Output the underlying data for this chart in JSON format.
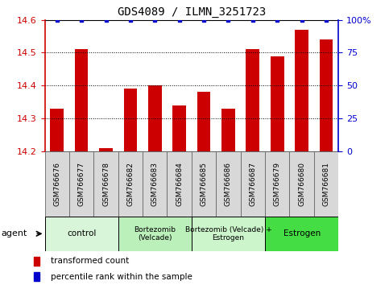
{
  "title": "GDS4089 / ILMN_3251723",
  "samples": [
    "GSM766676",
    "GSM766677",
    "GSM766678",
    "GSM766682",
    "GSM766683",
    "GSM766684",
    "GSM766685",
    "GSM766686",
    "GSM766687",
    "GSM766679",
    "GSM766680",
    "GSM766681"
  ],
  "values": [
    14.33,
    14.51,
    14.21,
    14.39,
    14.4,
    14.34,
    14.38,
    14.33,
    14.51,
    14.49,
    14.57,
    14.54
  ],
  "ylim": [
    14.2,
    14.6
  ],
  "yticks": [
    14.2,
    14.3,
    14.4,
    14.5,
    14.6
  ],
  "y2ticks": [
    0,
    25,
    50,
    75,
    100
  ],
  "y2labels": [
    "0",
    "25",
    "50",
    "75",
    "100%"
  ],
  "bar_color": "#cc0000",
  "dot_color": "#0000cc",
  "groups": [
    {
      "label": "control",
      "start": 0,
      "end": 3,
      "color": "#d9f5d9"
    },
    {
      "label": "Bortezomib\n(Velcade)",
      "start": 3,
      "end": 6,
      "color": "#bbf0bb"
    },
    {
      "label": "Bortezomib (Velcade) +\nEstrogen",
      "start": 6,
      "end": 9,
      "color": "#ccf5cc"
    },
    {
      "label": "Estrogen",
      "start": 9,
      "end": 12,
      "color": "#44dd44"
    }
  ],
  "legend_items": [
    {
      "color": "#cc0000",
      "label": "transformed count"
    },
    {
      "color": "#0000cc",
      "label": "percentile rank within the sample"
    }
  ],
  "bar_width": 0.55,
  "tick_label_color_left": "#cc0000",
  "tick_label_color_right": "#0000cc",
  "sample_box_color": "#d8d8d8",
  "sample_box_edge": "#666666"
}
